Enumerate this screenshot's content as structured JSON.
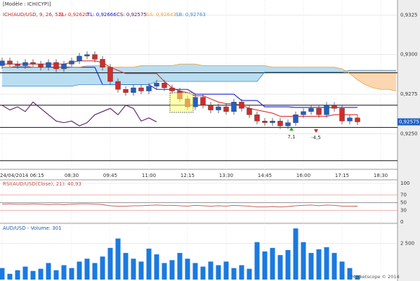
{
  "chart_data": [
    {
      "type": "candlestick",
      "subtitle": "[Modèle : ICH(CYP)]",
      "title": "ICH(AUD/USD, 9, 26, 52) -",
      "categories": [
        "24/04/2014 06:15",
        null,
        null,
        null,
        null,
        null,
        null,
        null,
        null,
        "08:30",
        null,
        null,
        null,
        null,
        "09:45",
        null,
        null,
        null,
        null,
        "11:00",
        null,
        null,
        null,
        null,
        "12:15",
        null,
        null,
        null,
        null,
        "13:30",
        null,
        null,
        null,
        null,
        "14:45",
        null,
        null,
        null,
        null,
        "16:00",
        null,
        null,
        null,
        null,
        "17:15",
        null,
        null,
        null,
        null,
        "18:30",
        null,
        null
      ],
      "open": [
        0.9293,
        0.9296,
        0.9294,
        0.9293,
        0.9295,
        0.9294,
        0.9292,
        0.9295,
        0.9291,
        0.9294,
        0.9296,
        0.9299,
        0.93,
        0.9297,
        0.9292,
        0.9283,
        0.9278,
        0.9276,
        0.9279,
        0.9277,
        0.928,
        0.9282,
        0.9279,
        0.9277,
        0.9272,
        0.9267,
        0.9273,
        0.9268,
        0.9265,
        0.9267,
        0.9264,
        0.927,
        0.9266,
        0.9262,
        0.9258,
        0.9257,
        0.9258,
        0.9255,
        0.9257,
        0.9262,
        0.9264,
        0.9266,
        0.9262,
        0.9268,
        0.9266,
        0.9258,
        0.926,
        null,
        null,
        null,
        null,
        null
      ],
      "high": [
        0.9298,
        0.9298,
        0.9296,
        0.9297,
        0.9297,
        0.9296,
        0.9297,
        0.9297,
        0.9296,
        0.9298,
        0.9301,
        0.9302,
        0.9302,
        0.9299,
        0.9294,
        0.9285,
        0.928,
        0.9281,
        0.9281,
        0.9282,
        0.9284,
        0.9284,
        0.9281,
        0.9279,
        0.9274,
        0.9275,
        0.9275,
        0.927,
        0.9269,
        0.9269,
        0.9272,
        0.9272,
        0.9268,
        0.9264,
        0.926,
        0.926,
        0.926,
        0.9259,
        0.9264,
        0.9266,
        0.9268,
        0.9268,
        0.927,
        0.927,
        0.9268,
        0.9262,
        0.9262,
        null,
        null,
        null,
        null,
        null
      ],
      "low": [
        0.9291,
        0.9292,
        0.9291,
        0.9291,
        0.9292,
        0.929,
        0.929,
        0.9289,
        0.9289,
        0.9292,
        0.9294,
        0.9297,
        0.9295,
        0.929,
        0.9281,
        0.9276,
        0.9274,
        0.9274,
        0.9275,
        0.9275,
        0.9278,
        0.9277,
        0.9275,
        0.927,
        0.9265,
        0.9265,
        0.9266,
        0.9263,
        0.9263,
        0.9262,
        0.9262,
        0.9264,
        0.926,
        0.9256,
        0.9255,
        0.9255,
        0.9253,
        0.9253,
        0.9255,
        0.926,
        0.9262,
        0.926,
        0.926,
        0.9264,
        0.9256,
        0.9256,
        0.92555,
        null,
        null,
        null,
        null,
        null
      ],
      "close": [
        0.9296,
        0.9294,
        0.9293,
        0.9295,
        0.9294,
        0.9292,
        0.9295,
        0.9291,
        0.9294,
        0.9296,
        0.9299,
        0.93,
        0.9297,
        0.9292,
        0.9283,
        0.9278,
        0.9276,
        0.9279,
        0.9277,
        0.928,
        0.9282,
        0.9279,
        0.9277,
        0.9272,
        0.9267,
        0.9273,
        0.9268,
        0.9265,
        0.9267,
        0.9264,
        0.927,
        0.9266,
        0.9262,
        0.9258,
        0.9257,
        0.9258,
        0.9255,
        0.9257,
        0.9262,
        0.9264,
        0.9266,
        0.9262,
        0.9268,
        0.9266,
        0.9258,
        0.926,
        0.92575,
        null,
        null,
        null,
        null,
        null
      ],
      "up_color": "#1f5fc4",
      "down_color": "#d42a2a",
      "series": [
        {
          "name": "SL: 0,92620",
          "color": "#e03030",
          "values": [
            0.9294,
            0.9294,
            0.9294,
            0.9294,
            0.9294,
            0.9294,
            0.9294,
            0.9294,
            0.9294,
            0.9295,
            0.9296,
            0.9296,
            0.9296,
            0.9295,
            0.9292,
            0.929,
            0.9288,
            0.9288,
            0.9288,
            0.9288,
            0.9288,
            0.9283,
            0.9279,
            0.9277,
            0.9276,
            0.9274,
            0.9274,
            0.9272,
            0.927,
            0.9269,
            0.9269,
            0.9268,
            0.9266,
            0.9265,
            0.9264,
            0.9263,
            0.9261,
            0.9261,
            0.9261,
            0.9261,
            0.9261,
            0.9261,
            0.9261,
            0.9262,
            0.9262,
            0.9262,
            0.9262,
            null,
            null,
            null,
            null,
            null
          ]
        },
        {
          "name": "TL: 0,92666",
          "color": "#1a1adc",
          "values": [
            0.9292,
            0.9292,
            0.9292,
            0.9292,
            0.9292,
            0.9292,
            0.9292,
            0.9292,
            0.9292,
            0.9292,
            0.9292,
            0.9292,
            0.9292,
            0.9281,
            0.9281,
            0.9281,
            0.9281,
            0.9281,
            0.9281,
            0.9281,
            0.9278,
            0.9278,
            0.9278,
            0.9278,
            0.9278,
            0.9275,
            0.9275,
            0.9275,
            0.9275,
            0.9275,
            0.9275,
            0.9271,
            0.9271,
            0.9271,
            0.9267,
            0.9267,
            0.9267,
            0.9267,
            0.92666,
            0.92666,
            0.92666,
            0.92666,
            0.92666,
            0.92666,
            0.92666,
            0.92666,
            0.92666,
            null,
            null,
            null,
            null,
            null
          ]
        },
        {
          "name": "CS: 0,92575",
          "color": "#5a1a6a",
          "values": [
            0.9268,
            0.9265,
            0.9267,
            0.9264,
            0.927,
            0.9266,
            0.9262,
            0.9258,
            0.9257,
            0.9258,
            0.9255,
            0.9257,
            0.9262,
            0.9264,
            0.9266,
            0.9262,
            0.9268,
            0.9266,
            0.9258,
            0.926,
            0.92575,
            null,
            null,
            null,
            null,
            null,
            null,
            null,
            null,
            null,
            null,
            null,
            null,
            null,
            null,
            null,
            null,
            null,
            null,
            null,
            null,
            null,
            null,
            null,
            null,
            null,
            null,
            null,
            null,
            null,
            null,
            null
          ]
        },
        {
          "name": "SA: 0,92643",
          "color": "#f0a040",
          "values": [
            0.9292,
            0.9292,
            0.9293,
            0.9293,
            0.9292,
            0.9292,
            0.9292,
            0.9291,
            0.9291,
            0.9292,
            0.9292,
            0.9293,
            0.9293,
            0.9293,
            0.9292,
            0.9292,
            0.9292,
            0.9292,
            0.9293,
            0.9293,
            0.9293,
            0.9293,
            0.9293,
            0.9294,
            0.9294,
            0.9294,
            0.9293,
            0.9293,
            0.9293,
            0.9293,
            0.9293,
            0.9293,
            0.9293,
            0.9293,
            0.9293,
            0.9292,
            0.9292,
            0.9292,
            0.9292,
            0.9292,
            0.9292,
            0.9292,
            0.9292,
            0.9292,
            0.9291,
            0.9288,
            0.9284,
            0.9281,
            0.9279,
            0.9278,
            0.9278,
            0.9277
          ]
        },
        {
          "name": "SB: 0,92763",
          "color": "#3c8ccc",
          "values": [
            0.928,
            0.928,
            0.928,
            0.928,
            0.928,
            0.928,
            0.928,
            0.928,
            0.928,
            0.928,
            0.9281,
            0.9281,
            0.9281,
            0.9281,
            0.9281,
            0.9281,
            0.9281,
            0.9281,
            0.9281,
            0.9281,
            0.9283,
            0.9283,
            0.9283,
            0.9283,
            0.9283,
            0.9283,
            0.9283,
            0.9283,
            0.9283,
            0.9283,
            0.9283,
            0.9283,
            0.9283,
            0.9283,
            0.9289,
            0.9289,
            0.9289,
            0.9289,
            0.9289,
            0.9289,
            0.9289,
            0.9289,
            0.9289,
            0.9289,
            0.9289,
            0.929,
            0.929,
            0.929,
            0.929,
            0.929,
            0.929,
            0.929
          ]
        }
      ],
      "cloud_fill": [
        "#b9def2",
        "#fbd6b0"
      ],
      "levels": [
        0.92885,
        0.9268,
        0.9254,
        0.9233
      ],
      "last_price": {
        "value": 0.92575,
        "label": "0,92575"
      },
      "annotations": [
        {
          "value": 7.1,
          "label": "7,1"
        },
        {
          "value": -4.5,
          "label": "-4,5"
        }
      ],
      "ylim": [
        0.9228,
        0.933
      ],
      "yticks": [
        {
          "value": 0.9325,
          "label": "0,9325"
        },
        {
          "value": 0.93,
          "label": "0,9300"
        },
        {
          "value": 0.9275,
          "label": "0,9275"
        },
        {
          "value": 0.925,
          "label": "0,9250"
        }
      ],
      "grid": true
    },
    {
      "type": "line",
      "title": "RSI(AUD/USD(Close), 21): 40,93",
      "color": "#c0504d",
      "values": [
        46,
        47,
        46,
        46,
        47,
        46,
        45,
        46,
        45,
        46,
        47,
        47,
        46,
        45,
        42,
        41,
        41,
        42,
        42,
        43,
        44,
        43,
        43,
        42,
        41,
        43,
        42,
        41,
        42,
        41,
        43,
        42,
        41,
        39,
        39,
        40,
        39,
        40,
        42,
        43,
        44,
        42,
        44,
        43,
        41,
        41,
        40.93,
        null,
        null,
        null,
        null,
        null
      ],
      "ylim": [
        0,
        100
      ],
      "yticks": [
        100,
        70,
        50,
        30,
        0
      ]
    },
    {
      "type": "bar",
      "title": "AUD/USD - Volume: 301",
      "color": "#1a7ae0",
      "values": [
        800,
        400,
        650,
        900,
        600,
        750,
        1150,
        650,
        1000,
        800,
        1250,
        1450,
        1150,
        1600,
        2200,
        2850,
        1850,
        1450,
        1250,
        2150,
        1750,
        1150,
        1350,
        1850,
        1450,
        1150,
        900,
        1250,
        1000,
        1250,
        800,
        1000,
        750,
        2600,
        1950,
        2200,
        1700,
        2050,
        3550,
        2600,
        1850,
        2100,
        2250,
        1850,
        1250,
        800,
        301,
        null,
        null,
        null,
        null,
        null
      ],
      "ylim": [
        0,
        3900
      ],
      "yticks": [
        {
          "value": 2500,
          "label": "2 500"
        }
      ],
      "credit": "Marketscope © 2014"
    }
  ]
}
